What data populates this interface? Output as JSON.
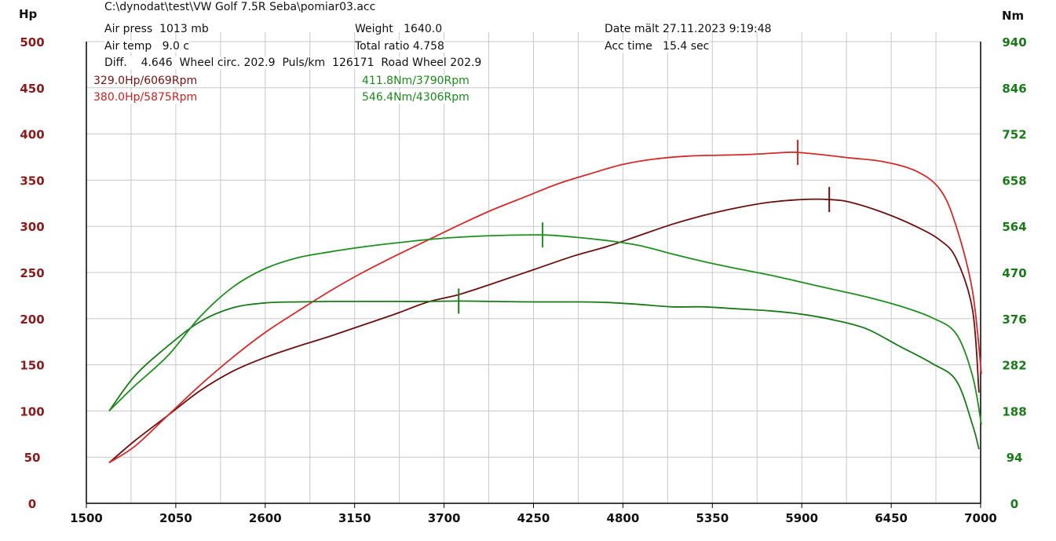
{
  "header": {
    "file_path": "C:\\dynodat\\test\\VW Golf 7.5R Seba\\pomiar03.acc",
    "air_press": "Air press  1013 mb",
    "air_temp": "Air temp   9.0 c",
    "diff_line": "Diff.    4.646  Wheel circ. 202.9  Puls/km  126171  Road Wheel 202.9",
    "weight": "Weight   1640.0",
    "total_ratio": "Total ratio 4.758",
    "date": "Date mält 27.11.2023 9:19:48",
    "acc_time": "Acc time   15.4 sec"
  },
  "peak_labels": {
    "hp_run1": "329.0Hp/6069Rpm",
    "hp_run2": "380.0Hp/5875Rpm",
    "nm_run1": "411.8Nm/3790Rpm",
    "nm_run2": "546.4Nm/4306Rpm"
  },
  "colors": {
    "power_run1": "#6b0f0f",
    "power_run2": "#d42a2a",
    "torque_run1": "#1a7a1a",
    "torque_run2": "#1f8f1f",
    "left_axis": "#8b1a1a",
    "right_axis": "#1a7a1a",
    "grid": "#c8c8c8"
  },
  "chart_data": {
    "type": "line",
    "xlabel": "",
    "y_left_label": "Hp",
    "y_right_label": "Nm",
    "xlim": [
      1500,
      7000
    ],
    "ylim_left": [
      0,
      500
    ],
    "ylim_right": [
      0,
      940
    ],
    "x_ticks": [
      1500,
      2050,
      2600,
      3150,
      3700,
      4250,
      4800,
      5350,
      5900,
      6450,
      7000
    ],
    "y_left_ticks": [
      0,
      50,
      100,
      150,
      200,
      250,
      300,
      350,
      400,
      450,
      500
    ],
    "y_right_ticks": [
      0,
      94,
      188,
      282,
      376,
      470,
      564,
      658,
      752,
      846,
      940
    ],
    "grid": true,
    "series": [
      {
        "axis": "left",
        "points": [
          [
            1640,
            44
          ],
          [
            1800,
            68
          ],
          [
            2000,
            95
          ],
          [
            2200,
            122
          ],
          [
            2400,
            143
          ],
          [
            2600,
            158
          ],
          [
            2800,
            170
          ],
          [
            3000,
            181
          ],
          [
            3200,
            193
          ],
          [
            3400,
            205
          ],
          [
            3600,
            218
          ],
          [
            3790,
            226
          ],
          [
            4000,
            238
          ],
          [
            4250,
            253
          ],
          [
            4500,
            268
          ],
          [
            4700,
            278
          ],
          [
            4900,
            290
          ],
          [
            5100,
            302
          ],
          [
            5300,
            312
          ],
          [
            5500,
            320
          ],
          [
            5700,
            326
          ],
          [
            5900,
            329
          ],
          [
            6069,
            329
          ],
          [
            6200,
            326
          ],
          [
            6400,
            315
          ],
          [
            6600,
            300
          ],
          [
            6750,
            285
          ],
          [
            6850,
            265
          ],
          [
            6950,
            210
          ],
          [
            6990,
            120
          ]
        ],
        "peak_marker": [
          6069,
          329.0
        ]
      },
      {
        "axis": "left",
        "points": [
          [
            1640,
            44
          ],
          [
            1800,
            62
          ],
          [
            2000,
            95
          ],
          [
            2200,
            128
          ],
          [
            2400,
            158
          ],
          [
            2600,
            185
          ],
          [
            2800,
            208
          ],
          [
            3000,
            230
          ],
          [
            3200,
            250
          ],
          [
            3400,
            268
          ],
          [
            3600,
            285
          ],
          [
            3800,
            302
          ],
          [
            4000,
            318
          ],
          [
            4200,
            332
          ],
          [
            4400,
            346
          ],
          [
            4600,
            357
          ],
          [
            4800,
            367
          ],
          [
            5000,
            373
          ],
          [
            5200,
            376
          ],
          [
            5400,
            377
          ],
          [
            5600,
            378
          ],
          [
            5800,
            380
          ],
          [
            5875,
            380
          ],
          [
            6000,
            378
          ],
          [
            6200,
            374
          ],
          [
            6400,
            370
          ],
          [
            6600,
            360
          ],
          [
            6750,
            340
          ],
          [
            6850,
            300
          ],
          [
            6950,
            230
          ],
          [
            7005,
            140
          ]
        ],
        "peak_marker": [
          5875,
          380.0
        ]
      },
      {
        "axis": "right",
        "points": [
          [
            1640,
            188
          ],
          [
            1800,
            260
          ],
          [
            2000,
            320
          ],
          [
            2200,
            370
          ],
          [
            2400,
            398
          ],
          [
            2600,
            408
          ],
          [
            2800,
            410
          ],
          [
            3000,
            411
          ],
          [
            3200,
            411
          ],
          [
            3400,
            411
          ],
          [
            3600,
            411
          ],
          [
            3790,
            411.8
          ],
          [
            4000,
            411
          ],
          [
            4250,
            410
          ],
          [
            4500,
            410
          ],
          [
            4700,
            409
          ],
          [
            4900,
            405
          ],
          [
            5100,
            400
          ],
          [
            5300,
            400
          ],
          [
            5500,
            396
          ],
          [
            5700,
            392
          ],
          [
            5900,
            385
          ],
          [
            6100,
            373
          ],
          [
            6300,
            355
          ],
          [
            6500,
            320
          ],
          [
            6700,
            285
          ],
          [
            6850,
            250
          ],
          [
            6950,
            160
          ],
          [
            6990,
            110
          ]
        ],
        "peak_marker": [
          3790,
          411.8
        ]
      },
      {
        "axis": "right",
        "points": [
          [
            1640,
            188
          ],
          [
            1800,
            240
          ],
          [
            2000,
            300
          ],
          [
            2200,
            380
          ],
          [
            2400,
            440
          ],
          [
            2600,
            478
          ],
          [
            2800,
            500
          ],
          [
            3000,
            512
          ],
          [
            3200,
            522
          ],
          [
            3400,
            530
          ],
          [
            3600,
            537
          ],
          [
            3800,
            542
          ],
          [
            4000,
            545
          ],
          [
            4306,
            546.4
          ],
          [
            4500,
            542
          ],
          [
            4700,
            535
          ],
          [
            4900,
            525
          ],
          [
            5100,
            508
          ],
          [
            5300,
            492
          ],
          [
            5500,
            478
          ],
          [
            5700,
            465
          ],
          [
            5900,
            450
          ],
          [
            6100,
            435
          ],
          [
            6300,
            420
          ],
          [
            6500,
            402
          ],
          [
            6700,
            378
          ],
          [
            6850,
            345
          ],
          [
            6950,
            260
          ],
          [
            7005,
            160
          ]
        ],
        "peak_marker": [
          4306,
          546.4
        ]
      }
    ]
  }
}
